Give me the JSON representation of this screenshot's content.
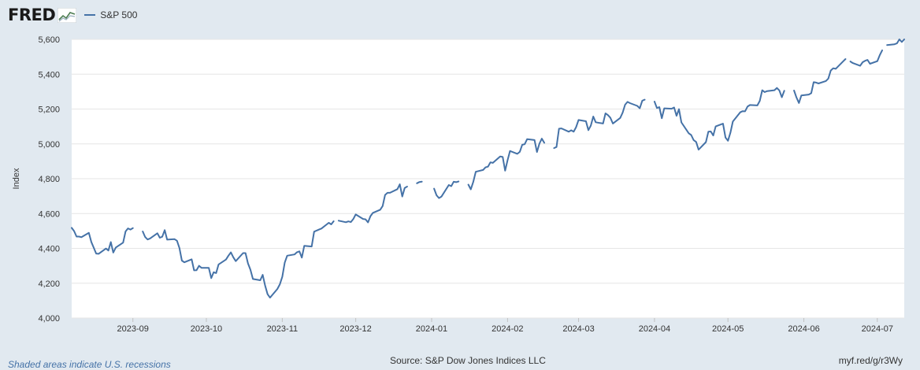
{
  "logo": {
    "text": "FRED"
  },
  "legend": {
    "series_label": "S&P 500"
  },
  "footer": {
    "note": "Shaded areas indicate U.S. recessions",
    "source": "Source: S&P Dow Jones Indices LLC",
    "url": "myf.red/g/r3Wy"
  },
  "colors": {
    "line": "#4572a7",
    "background": "#e1e9f0",
    "plot": "#ffffff",
    "grid": "#e6e6e6"
  },
  "chart_data": {
    "type": "line",
    "ylabel": "Index",
    "ylim": [
      4000,
      5600
    ],
    "yticks": [
      4000,
      4200,
      4400,
      4600,
      4800,
      5000,
      5200,
      5400,
      5600
    ],
    "ytick_labels": [
      "4,000",
      "4,200",
      "4,400",
      "4,600",
      "4,800",
      "5,000",
      "5,200",
      "5,400",
      "5,600"
    ],
    "xlim": [
      "2023-08-07",
      "2024-07-12"
    ],
    "xticks": [
      "2023-09-01",
      "2023-10-01",
      "2023-11-01",
      "2023-12-01",
      "2024-01-01",
      "2024-02-01",
      "2024-03-01",
      "2024-04-01",
      "2024-05-01",
      "2024-06-01",
      "2024-07-01"
    ],
    "xtick_labels": [
      "2023-09",
      "2023-10",
      "2023-11",
      "2023-12",
      "2024-01",
      "2024-02",
      "2024-03",
      "2024-04",
      "2024-05",
      "2024-06",
      "2024-07"
    ],
    "grid": true,
    "series": [
      {
        "name": "S&P 500",
        "segments": [
          [
            [
              "2023-08-07",
              4518
            ],
            [
              "2023-08-08",
              4499
            ],
            [
              "2023-08-09",
              4468
            ],
            [
              "2023-08-10",
              4468
            ],
            [
              "2023-08-11",
              4464
            ],
            [
              "2023-08-14",
              4489
            ],
            [
              "2023-08-15",
              4437
            ],
            [
              "2023-08-16",
              4404
            ],
            [
              "2023-08-17",
              4370
            ],
            [
              "2023-08-18",
              4369
            ],
            [
              "2023-08-21",
              4399
            ],
            [
              "2023-08-22",
              4388
            ],
            [
              "2023-08-23",
              4436
            ],
            [
              "2023-08-24",
              4376
            ],
            [
              "2023-08-25",
              4405
            ],
            [
              "2023-08-28",
              4433
            ],
            [
              "2023-08-29",
              4497
            ],
            [
              "2023-08-30",
              4515
            ],
            [
              "2023-08-31",
              4508
            ],
            [
              "2023-09-01",
              4516
            ]
          ],
          [
            [
              "2023-09-05",
              4497
            ],
            [
              "2023-09-06",
              4465
            ],
            [
              "2023-09-07",
              4451
            ],
            [
              "2023-09-08",
              4457
            ],
            [
              "2023-09-11",
              4487
            ],
            [
              "2023-09-12",
              4461
            ],
            [
              "2023-09-13",
              4467
            ],
            [
              "2023-09-14",
              4505
            ],
            [
              "2023-09-15",
              4450
            ],
            [
              "2023-09-18",
              4453
            ],
            [
              "2023-09-19",
              4444
            ],
            [
              "2023-09-20",
              4402
            ],
            [
              "2023-09-21",
              4330
            ],
            [
              "2023-09-22",
              4320
            ],
            [
              "2023-09-25",
              4337
            ],
            [
              "2023-09-26",
              4274
            ],
            [
              "2023-09-27",
              4275
            ],
            [
              "2023-09-28",
              4300
            ],
            [
              "2023-09-29",
              4288
            ],
            [
              "2023-10-02",
              4288
            ],
            [
              "2023-10-03",
              4229
            ],
            [
              "2023-10-04",
              4263
            ],
            [
              "2023-10-05",
              4258
            ],
            [
              "2023-10-06",
              4308
            ],
            [
              "2023-10-09",
              4336
            ],
            [
              "2023-10-10",
              4358
            ],
            [
              "2023-10-11",
              4377
            ],
            [
              "2023-10-12",
              4349
            ],
            [
              "2023-10-13",
              4327
            ],
            [
              "2023-10-16",
              4373
            ],
            [
              "2023-10-17",
              4373
            ],
            [
              "2023-10-18",
              4314
            ],
            [
              "2023-10-19",
              4278
            ],
            [
              "2023-10-20",
              4224
            ],
            [
              "2023-10-23",
              4217
            ],
            [
              "2023-10-24",
              4248
            ],
            [
              "2023-10-25",
              4186
            ],
            [
              "2023-10-26",
              4137
            ],
            [
              "2023-10-27",
              4117
            ],
            [
              "2023-10-30",
              4167
            ],
            [
              "2023-10-31",
              4194
            ],
            [
              "2023-11-01",
              4237
            ],
            [
              "2023-11-02",
              4318
            ],
            [
              "2023-11-03",
              4358
            ],
            [
              "2023-11-06",
              4365
            ],
            [
              "2023-11-07",
              4378
            ],
            [
              "2023-11-08",
              4383
            ],
            [
              "2023-11-09",
              4347
            ],
            [
              "2023-11-10",
              4415
            ],
            [
              "2023-11-13",
              4411
            ],
            [
              "2023-11-14",
              4496
            ],
            [
              "2023-11-15",
              4502
            ],
            [
              "2023-11-16",
              4508
            ],
            [
              "2023-11-17",
              4514
            ],
            [
              "2023-11-20",
              4547
            ],
            [
              "2023-11-21",
              4538
            ],
            [
              "2023-11-22",
              4556
            ]
          ],
          [
            [
              "2023-11-24",
              4559
            ],
            [
              "2023-11-27",
              4550
            ],
            [
              "2023-11-28",
              4555
            ],
            [
              "2023-11-29",
              4551
            ],
            [
              "2023-11-30",
              4568
            ],
            [
              "2023-12-01",
              4595
            ],
            [
              "2023-12-04",
              4569
            ],
            [
              "2023-12-05",
              4567
            ],
            [
              "2023-12-06",
              4549
            ],
            [
              "2023-12-07",
              4585
            ],
            [
              "2023-12-08",
              4604
            ],
            [
              "2023-12-11",
              4622
            ],
            [
              "2023-12-12",
              4643
            ],
            [
              "2023-12-13",
              4707
            ],
            [
              "2023-12-14",
              4719
            ],
            [
              "2023-12-15",
              4719
            ],
            [
              "2023-12-18",
              4740
            ],
            [
              "2023-12-19",
              4768
            ],
            [
              "2023-12-20",
              4698
            ],
            [
              "2023-12-21",
              4747
            ],
            [
              "2023-12-22",
              4755
            ]
          ],
          [
            [
              "2023-12-26",
              4774
            ],
            [
              "2023-12-27",
              4781
            ],
            [
              "2023-12-28",
              4783
            ]
          ],
          [
            [
              "2024-01-02",
              4743
            ],
            [
              "2024-01-03",
              4705
            ],
            [
              "2024-01-04",
              4689
            ],
            [
              "2024-01-05",
              4697
            ],
            [
              "2024-01-08",
              4764
            ],
            [
              "2024-01-09",
              4757
            ],
            [
              "2024-01-10",
              4783
            ],
            [
              "2024-01-11",
              4780
            ],
            [
              "2024-01-12",
              4784
            ]
          ],
          [
            [
              "2024-01-16",
              4766
            ],
            [
              "2024-01-17",
              4739
            ],
            [
              "2024-01-18",
              4781
            ],
            [
              "2024-01-19",
              4840
            ],
            [
              "2024-01-22",
              4850
            ],
            [
              "2024-01-23",
              4865
            ],
            [
              "2024-01-24",
              4869
            ],
            [
              "2024-01-25",
              4894
            ],
            [
              "2024-01-26",
              4891
            ],
            [
              "2024-01-29",
              4928
            ],
            [
              "2024-01-30",
              4925
            ],
            [
              "2024-01-31",
              4846
            ],
            [
              "2024-02-01",
              4906
            ],
            [
              "2024-02-02",
              4959
            ],
            [
              "2024-02-05",
              4943
            ],
            [
              "2024-02-06",
              4954
            ],
            [
              "2024-02-07",
              4995
            ],
            [
              "2024-02-08",
              4998
            ],
            [
              "2024-02-09",
              5027
            ],
            [
              "2024-02-12",
              5022
            ],
            [
              "2024-02-13",
              4953
            ],
            [
              "2024-02-14",
              5001
            ],
            [
              "2024-02-15",
              5030
            ],
            [
              "2024-02-16",
              5006
            ]
          ],
          [
            [
              "2024-02-20",
              4976
            ],
            [
              "2024-02-21",
              4982
            ],
            [
              "2024-02-22",
              5087
            ],
            [
              "2024-02-23",
              5089
            ],
            [
              "2024-02-26",
              5070
            ],
            [
              "2024-02-27",
              5078
            ],
            [
              "2024-02-28",
              5070
            ],
            [
              "2024-02-29",
              5096
            ],
            [
              "2024-03-01",
              5137
            ],
            [
              "2024-03-04",
              5130
            ],
            [
              "2024-03-05",
              5079
            ],
            [
              "2024-03-06",
              5105
            ],
            [
              "2024-03-07",
              5157
            ],
            [
              "2024-03-08",
              5124
            ],
            [
              "2024-03-11",
              5117
            ],
            [
              "2024-03-12",
              5175
            ],
            [
              "2024-03-13",
              5165
            ],
            [
              "2024-03-14",
              5150
            ],
            [
              "2024-03-15",
              5117
            ],
            [
              "2024-03-18",
              5149
            ],
            [
              "2024-03-19",
              5179
            ],
            [
              "2024-03-20",
              5225
            ],
            [
              "2024-03-21",
              5241
            ],
            [
              "2024-03-22",
              5234
            ],
            [
              "2024-03-25",
              5218
            ],
            [
              "2024-03-26",
              5204
            ],
            [
              "2024-03-27",
              5248
            ],
            [
              "2024-03-28",
              5254
            ]
          ],
          [
            [
              "2024-04-01",
              5243
            ],
            [
              "2024-04-02",
              5206
            ],
            [
              "2024-04-03",
              5211
            ],
            [
              "2024-04-04",
              5147
            ],
            [
              "2024-04-05",
              5204
            ],
            [
              "2024-04-08",
              5202
            ],
            [
              "2024-04-09",
              5209
            ],
            [
              "2024-04-10",
              5161
            ],
            [
              "2024-04-11",
              5199
            ],
            [
              "2024-04-12",
              5123
            ],
            [
              "2024-04-15",
              5061
            ],
            [
              "2024-04-16",
              5051
            ],
            [
              "2024-04-17",
              5022
            ],
            [
              "2024-04-18",
              5011
            ],
            [
              "2024-04-19",
              4967
            ],
            [
              "2024-04-22",
              5010
            ],
            [
              "2024-04-23",
              5070
            ],
            [
              "2024-04-24",
              5071
            ],
            [
              "2024-04-25",
              5048
            ],
            [
              "2024-04-26",
              5100
            ],
            [
              "2024-04-29",
              5116
            ],
            [
              "2024-04-30",
              5036
            ],
            [
              "2024-05-01",
              5018
            ],
            [
              "2024-05-02",
              5064
            ],
            [
              "2024-05-03",
              5128
            ],
            [
              "2024-05-06",
              5181
            ],
            [
              "2024-05-07",
              5188
            ],
            [
              "2024-05-08",
              5187
            ],
            [
              "2024-05-09",
              5214
            ],
            [
              "2024-05-10",
              5223
            ],
            [
              "2024-05-13",
              5221
            ],
            [
              "2024-05-14",
              5247
            ],
            [
              "2024-05-15",
              5308
            ],
            [
              "2024-05-16",
              5297
            ],
            [
              "2024-05-17",
              5303
            ],
            [
              "2024-05-20",
              5308
            ],
            [
              "2024-05-21",
              5321
            ],
            [
              "2024-05-22",
              5307
            ],
            [
              "2024-05-23",
              5268
            ],
            [
              "2024-05-24",
              5305
            ]
          ],
          [
            [
              "2024-05-28",
              5306
            ],
            [
              "2024-05-29",
              5266
            ],
            [
              "2024-05-30",
              5235
            ],
            [
              "2024-05-31",
              5278
            ],
            [
              "2024-06-03",
              5283
            ],
            [
              "2024-06-04",
              5291
            ],
            [
              "2024-06-05",
              5354
            ],
            [
              "2024-06-06",
              5352
            ],
            [
              "2024-06-07",
              5347
            ],
            [
              "2024-06-10",
              5361
            ],
            [
              "2024-06-11",
              5375
            ],
            [
              "2024-06-12",
              5421
            ],
            [
              "2024-06-13",
              5434
            ],
            [
              "2024-06-14",
              5431
            ],
            [
              "2024-06-17",
              5473
            ],
            [
              "2024-06-18",
              5487
            ]
          ],
          [
            [
              "2024-06-20",
              5473
            ],
            [
              "2024-06-21",
              5464
            ],
            [
              "2024-06-24",
              5448
            ],
            [
              "2024-06-25",
              5469
            ],
            [
              "2024-06-26",
              5477
            ],
            [
              "2024-06-27",
              5482
            ],
            [
              "2024-06-28",
              5460
            ],
            [
              "2024-07-01",
              5475
            ],
            [
              "2024-07-02",
              5509
            ],
            [
              "2024-07-03",
              5537
            ]
          ],
          [
            [
              "2024-07-05",
              5567
            ],
            [
              "2024-07-08",
              5572
            ],
            [
              "2024-07-09",
              5577
            ],
            [
              "2024-07-10",
              5633
            ],
            [
              "2024-07-11",
              5585
            ],
            [
              "2024-07-12",
              5615
            ]
          ]
        ]
      }
    ]
  }
}
